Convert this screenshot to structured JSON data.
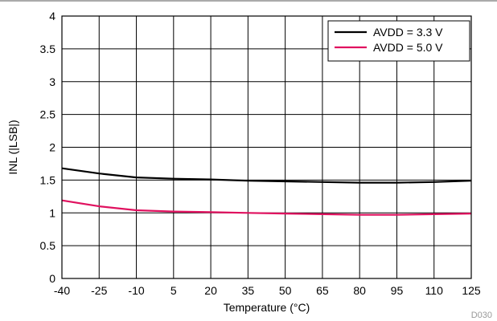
{
  "chart_data": {
    "type": "line",
    "title": "",
    "xlabel": "Temperature (°C)",
    "ylabel": "INL (|LSB|)",
    "xlim": [
      -40,
      125
    ],
    "ylim": [
      0,
      4
    ],
    "x_ticks": [
      -40,
      -25,
      -10,
      5,
      20,
      35,
      50,
      65,
      80,
      95,
      110,
      125
    ],
    "y_ticks": [
      0,
      0.5,
      1,
      1.5,
      2,
      2.5,
      3,
      3.5,
      4
    ],
    "y_tick_labels": [
      "0",
      "0.5",
      "1",
      "1.5",
      "2",
      "2.5",
      "3",
      "3.5",
      "4"
    ],
    "grid": true,
    "legend_position": "top-right",
    "figure_id": "D030",
    "series": [
      {
        "name": "AVDD = 3.3 V",
        "color": "#000000",
        "x": [
          -40,
          -25,
          -10,
          5,
          20,
          35,
          50,
          65,
          80,
          95,
          110,
          125
        ],
        "y": [
          1.68,
          1.6,
          1.54,
          1.52,
          1.51,
          1.49,
          1.48,
          1.47,
          1.46,
          1.46,
          1.47,
          1.49
        ]
      },
      {
        "name": "AVDD = 5.0 V",
        "color": "#e0115f",
        "x": [
          -40,
          -25,
          -10,
          5,
          20,
          35,
          50,
          65,
          80,
          95,
          110,
          125
        ],
        "y": [
          1.19,
          1.1,
          1.04,
          1.02,
          1.01,
          1.0,
          0.99,
          0.98,
          0.97,
          0.97,
          0.98,
          0.99
        ]
      }
    ]
  }
}
